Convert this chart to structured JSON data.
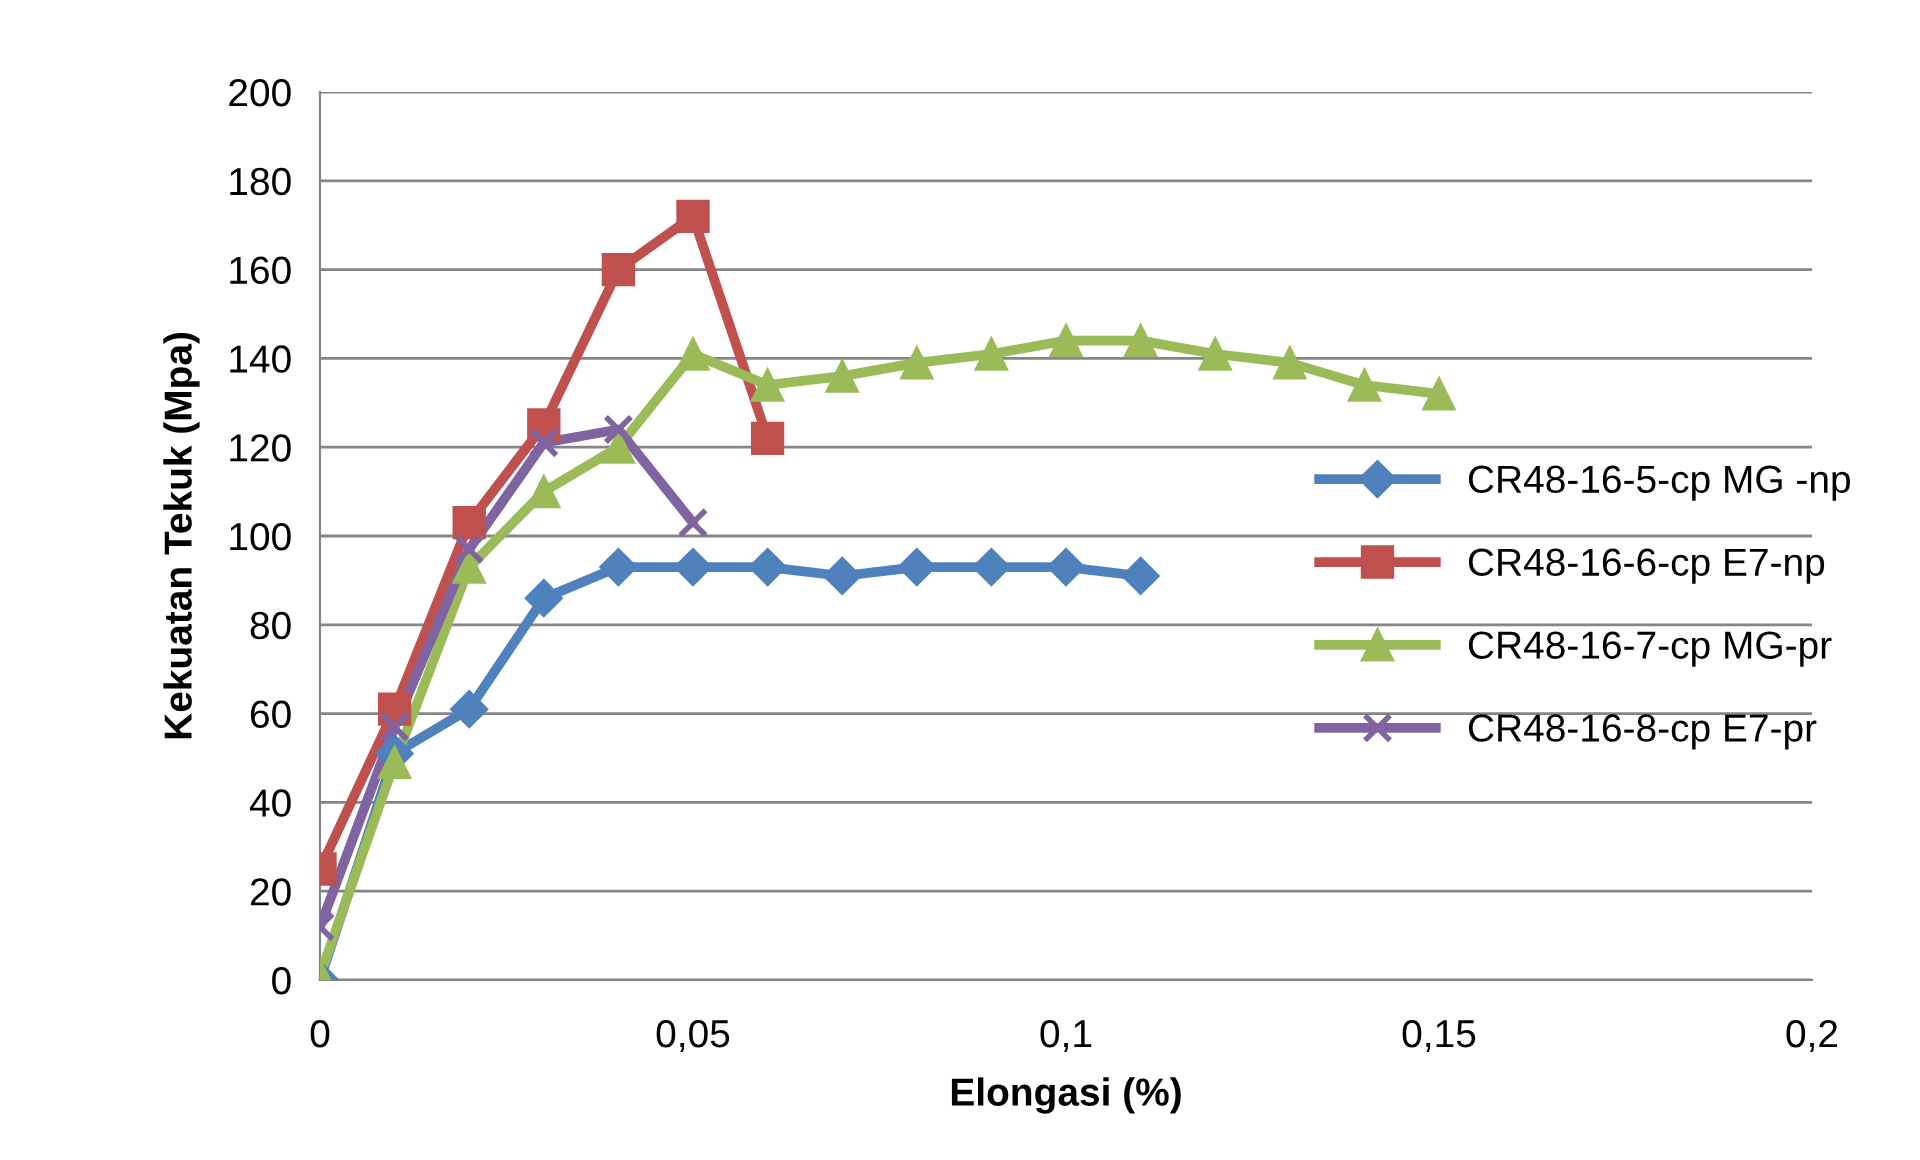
{
  "chart_data": {
    "type": "line",
    "xlabel": "Elongasi (%)",
    "ylabel": "Kekuatan Tekuk (Mpa)",
    "xlim": [
      0,
      0.2
    ],
    "xticks": [
      0,
      {
        "value": 0.05,
        "label": "0,05"
      },
      {
        "value": 0.1,
        "label": "0,1"
      },
      {
        "value": 0.15,
        "label": "0,15"
      },
      {
        "value": 0.2,
        "label": "0,2"
      }
    ],
    "ylim": [
      0,
      200
    ],
    "yticks": [
      0,
      20,
      40,
      60,
      80,
      100,
      120,
      140,
      160,
      180,
      200
    ],
    "grid": "y",
    "legend": "right",
    "line_style": "solid",
    "series": [
      {
        "name": "CR48-16-5-cp MG -np",
        "color": "#4f81bd",
        "marker": "diamond",
        "x": [
          0,
          0.01,
          0.02,
          0.03,
          0.04,
          0.05,
          0.06,
          0.07,
          0.08,
          0.09,
          0.1,
          0.11
        ],
        "values": [
          0,
          51,
          61,
          86,
          93,
          93,
          93,
          91,
          93,
          93,
          93,
          91
        ]
      },
      {
        "name": "CR48-16-6-cp E7-np",
        "color": "#c0504d",
        "marker": "square",
        "x": [
          0,
          0.01,
          0.02,
          0.03,
          0.04,
          0.05,
          0.06
        ],
        "values": [
          25,
          61,
          103,
          125,
          160,
          172,
          122
        ]
      },
      {
        "name": "CR48-16-7-cp MG-pr",
        "color": "#9bbb59",
        "marker": "triangle",
        "x": [
          0,
          0.01,
          0.02,
          0.03,
          0.04,
          0.05,
          0.06,
          0.07,
          0.08,
          0.09,
          0.1,
          0.11,
          0.12,
          0.13,
          0.14,
          0.15
        ],
        "values": [
          1,
          49,
          93,
          110,
          120,
          141,
          134,
          136,
          139,
          141,
          144,
          144,
          141,
          139,
          134,
          132
        ]
      },
      {
        "name": "CR48-16-8-cp E7-pr",
        "color": "#8064a2",
        "marker": "cross",
        "x": [
          0,
          0.01,
          0.02,
          0.03,
          0.04,
          0.05
        ],
        "values": [
          12,
          57,
          97,
          121,
          124,
          103
        ]
      }
    ]
  }
}
